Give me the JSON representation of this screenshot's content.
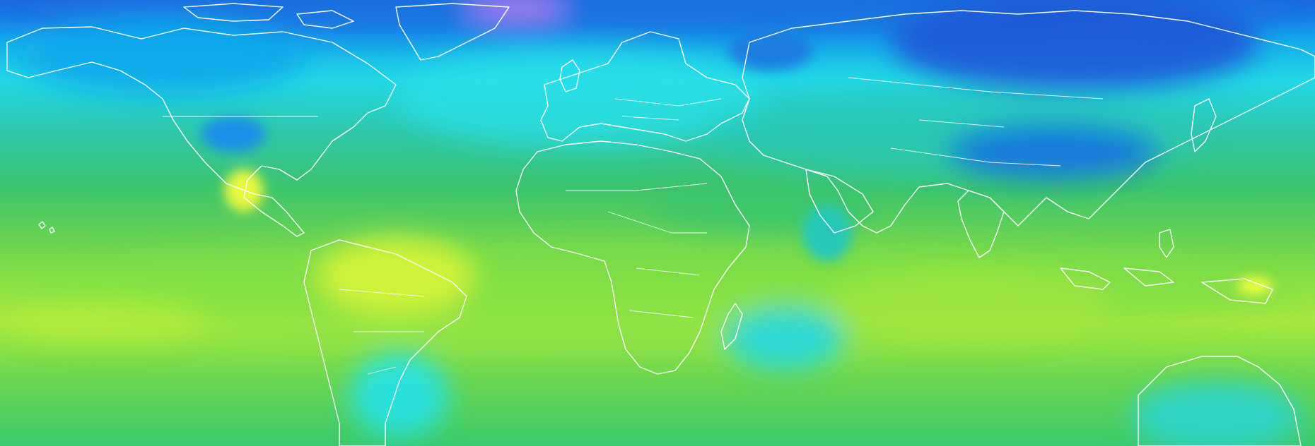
{
  "map": {
    "projection": "equirectangular",
    "bounds": {
      "lon": [
        -180,
        180
      ],
      "lat": [
        -50,
        85
      ]
    },
    "colormap": [
      "#f0ff40",
      "#b6ef3a",
      "#7ddf45",
      "#3fcf6a",
      "#2fbd7a",
      "#27c7b9",
      "#26e2e8",
      "#12a8ec",
      "#1773e0",
      "#2a3cd8",
      "#6b55ea",
      "#a07bf2"
    ],
    "land_outline_color": "#ffffff",
    "background_color": "#2fbd7a"
  },
  "regions": [
    {
      "name": "north-polar-band",
      "color": "#1773e0"
    },
    {
      "name": "greenland-core",
      "color": "#a07bf2"
    },
    {
      "name": "siberia-cold",
      "color": "#1e56d6"
    },
    {
      "name": "canada-cold",
      "color": "#12a8ec"
    },
    {
      "name": "north-atlantic-cyan",
      "color": "#26e2e8"
    },
    {
      "name": "mid-latitude-cyan",
      "color": "#27c7b9"
    },
    {
      "name": "tropical-green",
      "color": "#7ddf45"
    },
    {
      "name": "amazon-yellow",
      "color": "#d8f53a"
    },
    {
      "name": "south-africa-cyan",
      "color": "#26d8e2"
    },
    {
      "name": "australia-cyan",
      "color": "#2ed4d0"
    },
    {
      "name": "tibet-blue",
      "color": "#1773e0"
    }
  ]
}
